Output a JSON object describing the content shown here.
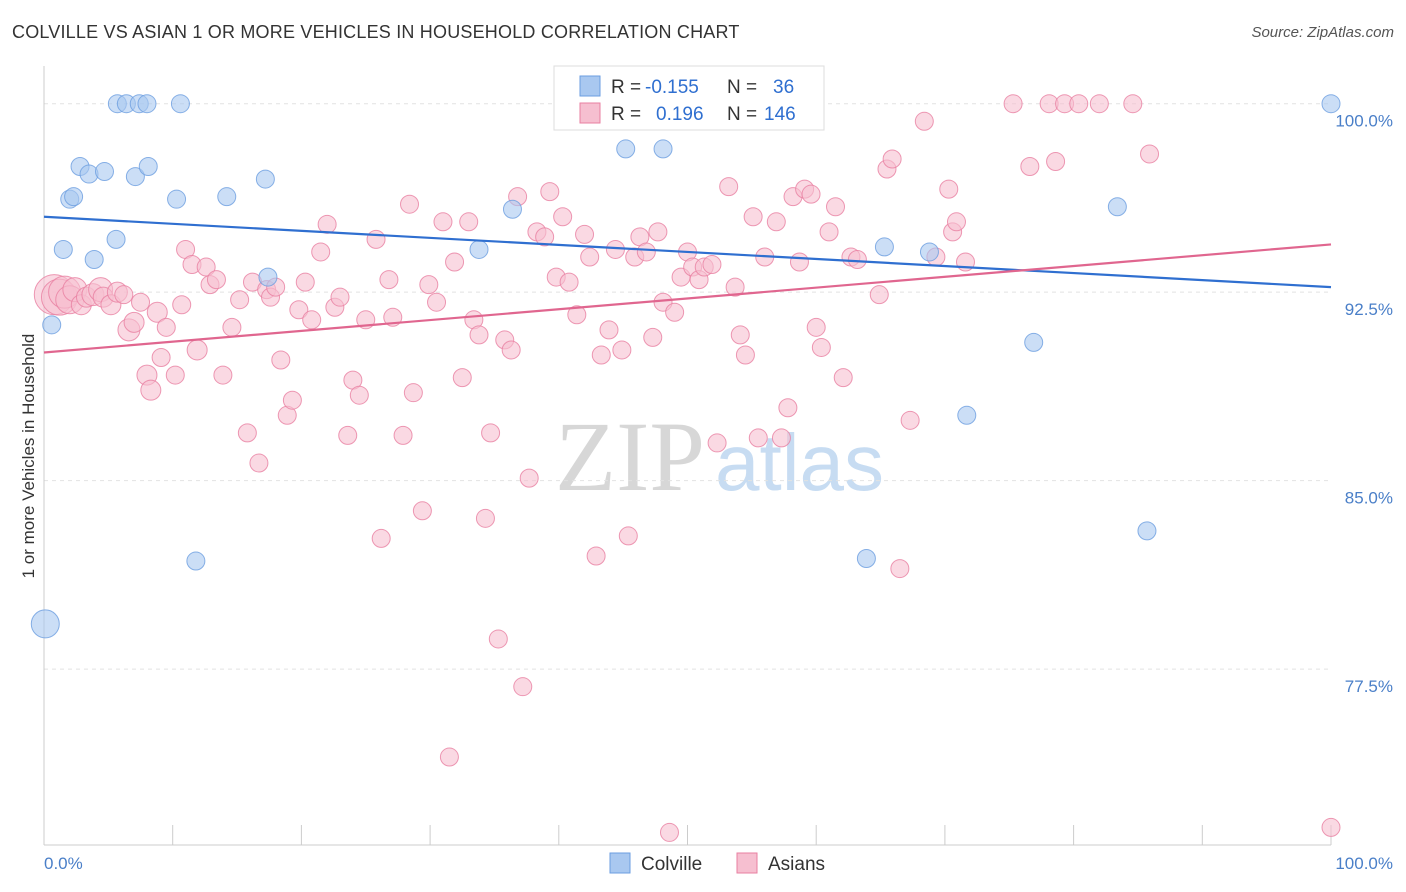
{
  "header": {
    "title": "COLVILLE VS ASIAN 1 OR MORE VEHICLES IN HOUSEHOLD CORRELATION CHART",
    "source": "Source: ZipAtlas.com"
  },
  "watermark": {
    "zip": "ZIP",
    "atlas": "atlas"
  },
  "legend": {
    "r_label": "R =",
    "n_label": "N =",
    "colville": {
      "r": "-0.155",
      "n": "36"
    },
    "asians": {
      "r": "0.196",
      "n": "146"
    }
  },
  "colors": {
    "colville": "#6b9ee0",
    "colville_fill": "#a9c8f0",
    "asians": "#e87fa1",
    "asians_fill": "#f6bfd0",
    "tick_text": "#4a7fc8"
  },
  "chart_data": {
    "type": "scatter",
    "xlabel": "",
    "ylabel": "1 or more Vehicles in Household",
    "xlim": [
      0,
      100
    ],
    "ylim": [
      70.5,
      101.5
    ],
    "y_ticks": [
      {
        "value": 100.0,
        "label": "100.0%"
      },
      {
        "value": 92.5,
        "label": "92.5%"
      },
      {
        "value": 85.0,
        "label": "85.0%"
      },
      {
        "value": 77.5,
        "label": "77.5%"
      }
    ],
    "x_tick_labels": {
      "left": "0.0%",
      "right": "100.0%"
    },
    "grid": "horizontal dashed",
    "legend_position": "top-center",
    "series": [
      {
        "name": "Colville",
        "trend": {
          "x": [
            0,
            100
          ],
          "y": [
            95.5,
            92.7
          ]
        },
        "points": [
          [
            0.1,
            79.3,
            14
          ],
          [
            0.6,
            91.2,
            9
          ],
          [
            1.5,
            94.2,
            9
          ],
          [
            2.0,
            96.2,
            9
          ],
          [
            2.3,
            96.3,
            9
          ],
          [
            2.8,
            97.5,
            9
          ],
          [
            3.5,
            97.2,
            9
          ],
          [
            3.9,
            93.8,
            9
          ],
          [
            4.7,
            97.3,
            9
          ],
          [
            5.6,
            94.6,
            9
          ],
          [
            5.7,
            100.0,
            9
          ],
          [
            6.4,
            100.0,
            9
          ],
          [
            7.1,
            97.1,
            9
          ],
          [
            7.4,
            100.0,
            9
          ],
          [
            8.0,
            100.0,
            9
          ],
          [
            8.1,
            97.5,
            9
          ],
          [
            10.3,
            96.2,
            9
          ],
          [
            10.6,
            100.0,
            9
          ],
          [
            11.8,
            81.8,
            9
          ],
          [
            14.2,
            96.3,
            9
          ],
          [
            17.2,
            97.0,
            9
          ],
          [
            17.4,
            93.1,
            9
          ],
          [
            33.8,
            94.2,
            9
          ],
          [
            36.4,
            95.8,
            9
          ],
          [
            40.8,
            100.0,
            9
          ],
          [
            45.2,
            98.2,
            9
          ],
          [
            48.1,
            98.2,
            9
          ],
          [
            53.9,
            100.0,
            9
          ],
          [
            63.9,
            81.9,
            9
          ],
          [
            65.3,
            94.3,
            9
          ],
          [
            68.8,
            94.1,
            9
          ],
          [
            71.7,
            87.6,
            9
          ],
          [
            76.9,
            90.5,
            9
          ],
          [
            83.4,
            95.9,
            9
          ],
          [
            85.7,
            83.0,
            9
          ],
          [
            100.0,
            100.0,
            9
          ]
        ]
      },
      {
        "name": "Asians",
        "trend": {
          "x": [
            0,
            100
          ],
          "y": [
            90.1,
            94.4
          ]
        },
        "points": [
          [
            0.8,
            92.4,
            20
          ],
          [
            1.2,
            92.3,
            18
          ],
          [
            1.6,
            92.5,
            16
          ],
          [
            2.0,
            92.2,
            14
          ],
          [
            2.4,
            92.6,
            12
          ],
          [
            2.9,
            92.0,
            10
          ],
          [
            3.3,
            92.3,
            10
          ],
          [
            3.8,
            92.4,
            11
          ],
          [
            4.4,
            92.6,
            12
          ],
          [
            4.6,
            92.3,
            10
          ],
          [
            5.2,
            92.0,
            10
          ],
          [
            5.7,
            92.5,
            10
          ],
          [
            6.2,
            92.4,
            9
          ],
          [
            6.6,
            91.0,
            11
          ],
          [
            7.0,
            91.3,
            10
          ],
          [
            7.5,
            92.1,
            9
          ],
          [
            8.0,
            89.2,
            10
          ],
          [
            8.3,
            88.6,
            10
          ],
          [
            8.8,
            91.7,
            10
          ],
          [
            9.1,
            89.9,
            9
          ],
          [
            9.5,
            91.1,
            9
          ],
          [
            10.2,
            89.2,
            9
          ],
          [
            10.7,
            92.0,
            9
          ],
          [
            11.0,
            94.2,
            9
          ],
          [
            11.5,
            93.6,
            9
          ],
          [
            11.9,
            90.2,
            10
          ],
          [
            12.6,
            93.5,
            9
          ],
          [
            12.9,
            92.8,
            9
          ],
          [
            13.4,
            93.0,
            9
          ],
          [
            13.9,
            89.2,
            9
          ],
          [
            14.6,
            91.1,
            9
          ],
          [
            15.2,
            92.2,
            9
          ],
          [
            15.8,
            86.9,
            9
          ],
          [
            16.2,
            92.9,
            9
          ],
          [
            16.7,
            85.7,
            9
          ],
          [
            17.3,
            92.6,
            9
          ],
          [
            17.6,
            92.3,
            9
          ],
          [
            18.0,
            92.7,
            9
          ],
          [
            18.4,
            89.8,
            9
          ],
          [
            18.9,
            87.6,
            9
          ],
          [
            19.3,
            88.2,
            9
          ],
          [
            19.8,
            91.8,
            9
          ],
          [
            20.3,
            92.9,
            9
          ],
          [
            20.8,
            91.4,
            9
          ],
          [
            21.5,
            94.1,
            9
          ],
          [
            22.0,
            95.2,
            9
          ],
          [
            22.6,
            91.9,
            9
          ],
          [
            23.0,
            92.3,
            9
          ],
          [
            23.6,
            86.8,
            9
          ],
          [
            24.0,
            89.0,
            9
          ],
          [
            24.5,
            88.4,
            9
          ],
          [
            25.0,
            91.4,
            9
          ],
          [
            25.8,
            94.6,
            9
          ],
          [
            26.2,
            82.7,
            9
          ],
          [
            26.8,
            93.0,
            9
          ],
          [
            27.1,
            91.5,
            9
          ],
          [
            27.9,
            86.8,
            9
          ],
          [
            28.4,
            96.0,
            9
          ],
          [
            28.7,
            88.5,
            9
          ],
          [
            29.4,
            83.8,
            9
          ],
          [
            29.9,
            92.8,
            9
          ],
          [
            30.5,
            92.1,
            9
          ],
          [
            31.0,
            95.3,
            9
          ],
          [
            31.5,
            74.0,
            9
          ],
          [
            31.9,
            93.7,
            9
          ],
          [
            32.5,
            89.1,
            9
          ],
          [
            33.0,
            95.3,
            9
          ],
          [
            33.4,
            91.4,
            9
          ],
          [
            33.8,
            90.8,
            9
          ],
          [
            34.3,
            83.5,
            9
          ],
          [
            34.7,
            86.9,
            9
          ],
          [
            35.3,
            78.7,
            9
          ],
          [
            35.8,
            90.6,
            9
          ],
          [
            36.3,
            90.2,
            9
          ],
          [
            36.8,
            96.3,
            9
          ],
          [
            37.2,
            76.8,
            9
          ],
          [
            37.7,
            85.1,
            9
          ],
          [
            38.3,
            94.9,
            9
          ],
          [
            38.9,
            94.7,
            9
          ],
          [
            39.3,
            96.5,
            9
          ],
          [
            39.8,
            93.1,
            9
          ],
          [
            40.3,
            95.5,
            9
          ],
          [
            40.8,
            92.9,
            9
          ],
          [
            41.4,
            91.6,
            9
          ],
          [
            42.0,
            94.8,
            9
          ],
          [
            42.4,
            93.9,
            9
          ],
          [
            42.9,
            82.0,
            9
          ],
          [
            43.3,
            90.0,
            9
          ],
          [
            43.9,
            91.0,
            9
          ],
          [
            44.4,
            94.2,
            9
          ],
          [
            44.9,
            90.2,
            9
          ],
          [
            45.4,
            82.8,
            9
          ],
          [
            45.9,
            93.9,
            9
          ],
          [
            46.3,
            94.7,
            9
          ],
          [
            46.8,
            94.1,
            9
          ],
          [
            47.3,
            90.7,
            9
          ],
          [
            47.7,
            94.9,
            9
          ],
          [
            48.1,
            92.1,
            9
          ],
          [
            48.6,
            71.0,
            9
          ],
          [
            49.0,
            91.7,
            9
          ],
          [
            49.5,
            93.1,
            9
          ],
          [
            50.0,
            94.1,
            9
          ],
          [
            50.4,
            93.5,
            9
          ],
          [
            50.9,
            93.0,
            9
          ],
          [
            51.3,
            93.5,
            9
          ],
          [
            51.9,
            93.6,
            9
          ],
          [
            52.3,
            86.5,
            9
          ],
          [
            52.8,
            100.0,
            9
          ],
          [
            53.2,
            96.7,
            9
          ],
          [
            53.7,
            92.7,
            9
          ],
          [
            54.1,
            90.8,
            9
          ],
          [
            54.5,
            90.0,
            9
          ],
          [
            55.1,
            95.5,
            9
          ],
          [
            55.5,
            86.7,
            9
          ],
          [
            56.0,
            93.9,
            9
          ],
          [
            56.4,
            100.0,
            9
          ],
          [
            56.9,
            95.3,
            9
          ],
          [
            57.3,
            86.7,
            9
          ],
          [
            57.8,
            87.9,
            9
          ],
          [
            58.2,
            96.3,
            9
          ],
          [
            58.7,
            93.7,
            9
          ],
          [
            59.1,
            96.6,
            9
          ],
          [
            59.6,
            96.4,
            9
          ],
          [
            60.0,
            91.1,
            9
          ],
          [
            60.4,
            90.3,
            9
          ],
          [
            61.0,
            94.9,
            9
          ],
          [
            61.5,
            95.9,
            9
          ],
          [
            62.1,
            89.1,
            9
          ],
          [
            62.7,
            93.9,
            9
          ],
          [
            63.2,
            93.8,
            9
          ],
          [
            64.9,
            92.4,
            9
          ],
          [
            65.5,
            97.4,
            9
          ],
          [
            65.9,
            97.8,
            9
          ],
          [
            66.5,
            81.5,
            9
          ],
          [
            67.3,
            87.4,
            9
          ],
          [
            68.4,
            99.3,
            9
          ],
          [
            69.3,
            93.9,
            9
          ],
          [
            70.3,
            96.6,
            9
          ],
          [
            70.6,
            94.9,
            9
          ],
          [
            70.9,
            95.3,
            9
          ],
          [
            71.6,
            93.7,
            9
          ],
          [
            76.6,
            97.5,
            9
          ],
          [
            75.3,
            100.0,
            9
          ],
          [
            78.1,
            100.0,
            9
          ],
          [
            78.6,
            97.7,
            9
          ],
          [
            79.3,
            100.0,
            9
          ],
          [
            80.4,
            100.0,
            9
          ],
          [
            82.0,
            100.0,
            9
          ],
          [
            84.6,
            100.0,
            9
          ],
          [
            85.9,
            98.0,
            9
          ],
          [
            100.0,
            71.2,
            9
          ]
        ]
      }
    ]
  },
  "bottom_legend": {
    "colville": "Colville",
    "asians": "Asians"
  }
}
